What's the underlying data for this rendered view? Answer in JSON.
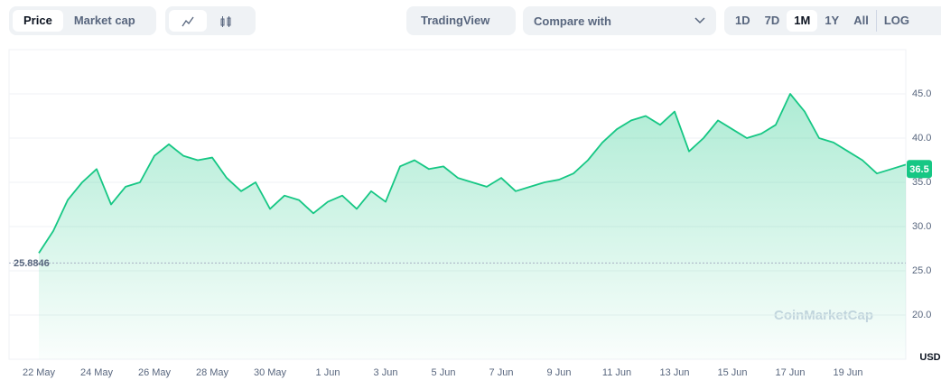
{
  "toolbar": {
    "views": [
      "Price",
      "Market cap"
    ],
    "tradingview": "TradingView",
    "compare": "Compare with",
    "ranges": [
      "1D",
      "7D",
      "1M",
      "1Y",
      "All"
    ],
    "log": "LOG"
  },
  "chart_data": {
    "type": "line",
    "watermark": "CoinMarketCap",
    "unit": "USD",
    "categories": [
      "22 May",
      null,
      null,
      null,
      "24 May",
      null,
      null,
      null,
      "26 May",
      null,
      null,
      null,
      "28 May",
      null,
      null,
      null,
      "30 May",
      null,
      null,
      null,
      "1 Jun",
      null,
      null,
      null,
      "3 Jun",
      null,
      null,
      null,
      "5 Jun",
      null,
      null,
      null,
      "7 Jun",
      null,
      null,
      null,
      "9 Jun",
      null,
      null,
      null,
      "11 Jun",
      null,
      null,
      null,
      "13 Jun",
      null,
      null,
      null,
      "15 Jun",
      null,
      null,
      null,
      "17 Jun",
      null,
      null,
      null,
      "19 Jun",
      null,
      null,
      null,
      null
    ],
    "series": [
      {
        "name": "Price",
        "color": "#16c784",
        "values": [
          27.0,
          29.5,
          33,
          35,
          36.5,
          32.5,
          34.5,
          35,
          38,
          39.3,
          38,
          37.5,
          37.8,
          35.5,
          34,
          35,
          32,
          33.5,
          33,
          31.5,
          32.8,
          33.5,
          32,
          34,
          32.8,
          36.8,
          37.5,
          36.5,
          36.8,
          35.5,
          35,
          34.5,
          35.5,
          34,
          34.5,
          35,
          35.3,
          36,
          37.5,
          39.5,
          41,
          42,
          42.5,
          41.5,
          43,
          38.5,
          40,
          42,
          41,
          40,
          40.5,
          41.5,
          45,
          43,
          40,
          39.5,
          38.5,
          37.5,
          36,
          36.5,
          37
        ]
      }
    ],
    "reference": 25.8846,
    "last_price": 36.5,
    "ylim": [
      15,
      50
    ],
    "yticks": [
      {
        "value": 20,
        "label": "20.0"
      },
      {
        "value": 25,
        "label": "25.0"
      },
      {
        "value": 30,
        "label": "30.0"
      },
      {
        "value": 35,
        "label": "35.0"
      },
      {
        "value": 40,
        "label": "40.0"
      },
      {
        "value": 45,
        "label": "45.0"
      }
    ],
    "grid": true
  }
}
